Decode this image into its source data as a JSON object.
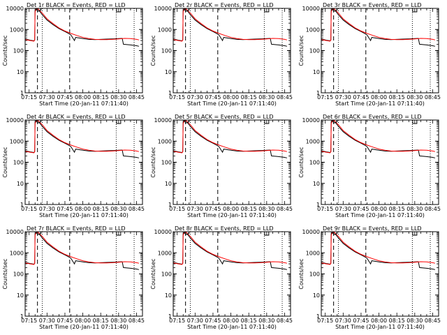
{
  "figure": {
    "start_time_label": "Start Time (20-Jan-11 07:11:40)",
    "ylabel": "Counts/sec",
    "legend_template": "BLACK = Events, RED = LLD"
  },
  "chart_data": {
    "type": "line",
    "panels": [
      {
        "title": "Det 1r"
      },
      {
        "title": "Det 2r"
      },
      {
        "title": "Det 3r"
      },
      {
        "title": "Det 4r"
      },
      {
        "title": "Det 5r"
      },
      {
        "title": "Det 6r"
      },
      {
        "title": "Det 7r"
      },
      {
        "title": "Det 8r"
      },
      {
        "title": "Det 9r"
      }
    ],
    "x_ticks": [
      "07:15",
      "07:30",
      "07:45",
      "08:00",
      "08:15",
      "08:30",
      "08:45"
    ],
    "xlim": [
      "07:11:40",
      "08:50:00"
    ],
    "y_ticks": [
      "1",
      "10",
      "100",
      "1000",
      "10000"
    ],
    "ylim": [
      1,
      10000
    ],
    "y_scale": "log",
    "series": [
      {
        "color": "#000000",
        "points": [
          [
            "07:11:40",
            350
          ],
          [
            "07:16:00",
            310
          ],
          [
            "07:19:00",
            290
          ],
          [
            "07:19:40",
            320
          ],
          [
            "07:20:00",
            8000
          ],
          [
            "07:21:00",
            9500
          ],
          [
            "07:22:00",
            10000
          ],
          [
            "07:26:00",
            5000
          ],
          [
            "07:30:00",
            2800
          ],
          [
            "07:35:00",
            1700
          ],
          [
            "07:40:00",
            1100
          ],
          [
            "07:45:00",
            800
          ],
          [
            "07:48:00",
            650
          ],
          [
            "07:50:00",
            550
          ],
          [
            "07:53:00",
            300
          ],
          [
            "07:54:00",
            420
          ],
          [
            "08:00:00",
            370
          ],
          [
            "08:05:00",
            340
          ],
          [
            "08:10:00",
            330
          ],
          [
            "08:15:00",
            340
          ],
          [
            "08:20:00",
            350
          ],
          [
            "08:25:00",
            360
          ],
          [
            "08:30:00",
            370
          ],
          [
            "08:33:00",
            380
          ],
          [
            "08:34:00",
            200
          ],
          [
            "08:40:00",
            185
          ],
          [
            "08:45:00",
            170
          ],
          [
            "08:47:00",
            160
          ]
        ]
      },
      {
        "color": "#ff0000",
        "points": [
          [
            "07:11:40",
            330
          ],
          [
            "07:16:00",
            300
          ],
          [
            "07:19:00",
            280
          ],
          [
            "07:19:40",
            310
          ],
          [
            "07:20:00",
            7000
          ],
          [
            "07:21:00",
            9000
          ],
          [
            "07:22:00",
            10000
          ],
          [
            "07:26:00",
            6000
          ],
          [
            "07:30:00",
            3200
          ],
          [
            "07:35:00",
            1900
          ],
          [
            "07:40:00",
            1200
          ],
          [
            "07:45:00",
            850
          ],
          [
            "07:50:00",
            650
          ],
          [
            "07:55:00",
            520
          ],
          [
            "08:00:00",
            420
          ],
          [
            "08:05:00",
            370
          ],
          [
            "08:10:00",
            340
          ],
          [
            "08:15:00",
            330
          ],
          [
            "08:20:00",
            330
          ],
          [
            "08:25:00",
            340
          ],
          [
            "08:30:00",
            360
          ],
          [
            "08:35:00",
            380
          ],
          [
            "08:40:00",
            370
          ],
          [
            "08:45:00",
            340
          ],
          [
            "08:47:00",
            320
          ]
        ]
      }
    ],
    "vlines_dashed": [
      "07:22:00",
      "07:49:00"
    ],
    "vlines_dotted": [
      "07:26:00",
      "08:28:00",
      "08:43:00"
    ],
    "markers": [
      {
        "shape": "circle",
        "x": "07:23:00",
        "y": 10000
      },
      {
        "shape": "square",
        "x": "08:30:00",
        "y": 10000
      }
    ]
  }
}
